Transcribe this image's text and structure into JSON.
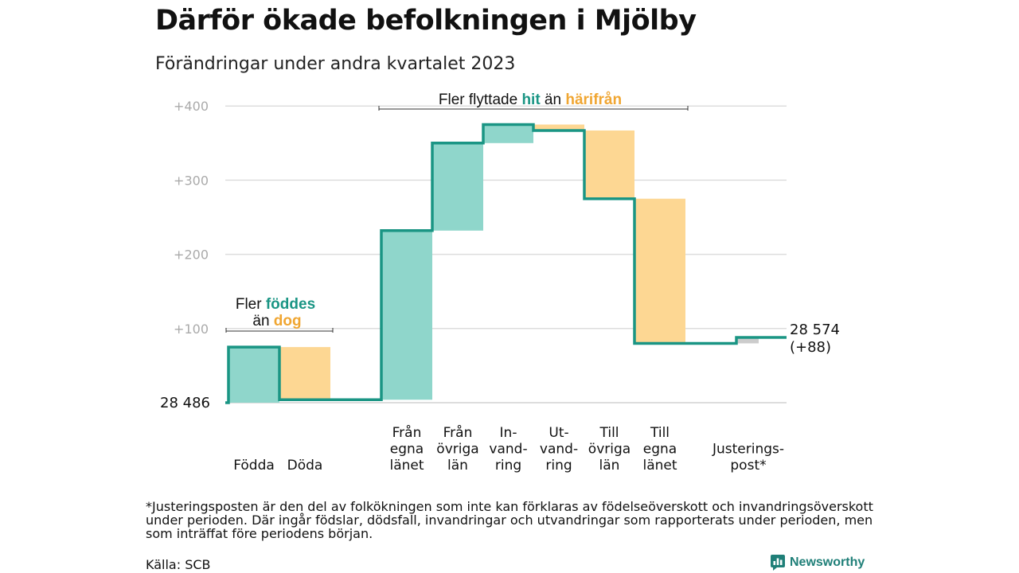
{
  "title": "Därför ökade befolkningen i Mjölby",
  "subtitle": "Förändringar under andra kvartalet 2023",
  "footnote": "*Justeringsposten är den del av folkökningen som inte kan förklaras av födelseöverskott och invandringsöverskott under perioden. Där ingår födslar, dödsfall, invandringar och utvandringar som rapporterats under perioden, men som inträffat före periodens början.",
  "source": "Källa: SCB",
  "brand": {
    "name": "Newsworthy",
    "icon": "newsworthy-logo-icon"
  },
  "colors": {
    "increase_fill": "#8fd6cb",
    "decrease_fill": "#fdd793",
    "line": "#1a9584",
    "teal_text": "#1a9584",
    "orange_text": "#f0a632",
    "adjustment_fill": "#cccccc",
    "grid": "#dddddd",
    "tick_text": "#aaaaaa"
  },
  "chart_data": {
    "type": "waterfall",
    "y_ticks": [
      "+100",
      "+200",
      "+300",
      "+400"
    ],
    "y_tick_values": [
      100,
      200,
      300,
      400
    ],
    "ylim": [
      -2,
      410
    ],
    "grid": true,
    "start_value": 0,
    "start_label": "28  486",
    "end_label_lines": [
      "28 574",
      "(+88)"
    ],
    "steps": [
      {
        "label_lines": [
          "Födda"
        ],
        "delta": 75,
        "kind": "increase"
      },
      {
        "label_lines": [
          "Döda"
        ],
        "delta": -71,
        "kind": "decrease"
      },
      {
        "label_lines": [
          "Från",
          "egna",
          "länet"
        ],
        "delta": 228,
        "kind": "increase"
      },
      {
        "label_lines": [
          "Från",
          "övriga",
          "län"
        ],
        "delta": 118,
        "kind": "increase"
      },
      {
        "label_lines": [
          "In-",
          "vand-",
          "ring"
        ],
        "delta": 25,
        "kind": "increase"
      },
      {
        "label_lines": [
          "Ut-",
          "vand-",
          "ring"
        ],
        "delta": -8,
        "kind": "decrease"
      },
      {
        "label_lines": [
          "Till",
          "övriga",
          "län"
        ],
        "delta": -92,
        "kind": "decrease"
      },
      {
        "label_lines": [
          "Till",
          "egna",
          "länet"
        ],
        "delta": -195,
        "kind": "decrease"
      },
      {
        "label_lines": [
          "Justerings-",
          "post*"
        ],
        "delta": 8,
        "kind": "adjustment"
      }
    ],
    "annotations": [
      {
        "parts": [
          [
            "Fler ",
            "plain"
          ],
          [
            "föddes",
            "teal"
          ]
        ],
        "parts2": [
          [
            "än ",
            "plain"
          ],
          [
            "dog",
            "orange"
          ]
        ],
        "span_steps": [
          0,
          1
        ]
      },
      {
        "parts": [
          [
            "Fler flyttade ",
            "plain"
          ],
          [
            "hit",
            "teal"
          ],
          [
            " än ",
            "plain"
          ],
          [
            "härifrån",
            "orange"
          ]
        ],
        "span_steps": [
          2,
          7
        ]
      }
    ]
  }
}
